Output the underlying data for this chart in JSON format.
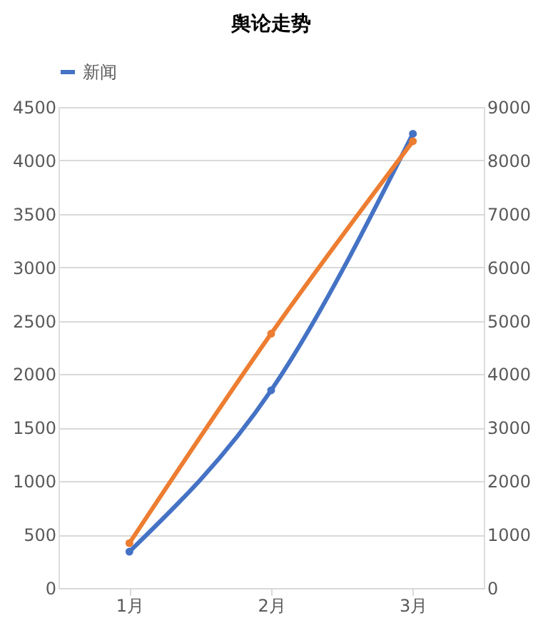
{
  "chart_data": {
    "type": "line",
    "title": "舆论走势",
    "categories": [
      "1月",
      "2月",
      "3月"
    ],
    "series": [
      {
        "name": "新闻",
        "color": "#4472c4",
        "values": [
          340,
          1850,
          4250
        ]
      },
      {
        "color": "#ed7d31",
        "axis": "y2",
        "values": [
          840,
          4760,
          8360
        ]
      }
    ],
    "ylim": [
      0,
      4500
    ],
    "yticks": [
      0,
      500,
      1000,
      1500,
      2000,
      2500,
      3000,
      3500,
      4000,
      4500
    ],
    "y2lim": [
      0,
      9000
    ],
    "y2ticks": [
      0,
      1000,
      2000,
      3000,
      4000,
      5000,
      6000,
      7000,
      8000,
      9000
    ],
    "grid": "y",
    "legend": "top",
    "marker": "circle",
    "line_style": "solid"
  }
}
